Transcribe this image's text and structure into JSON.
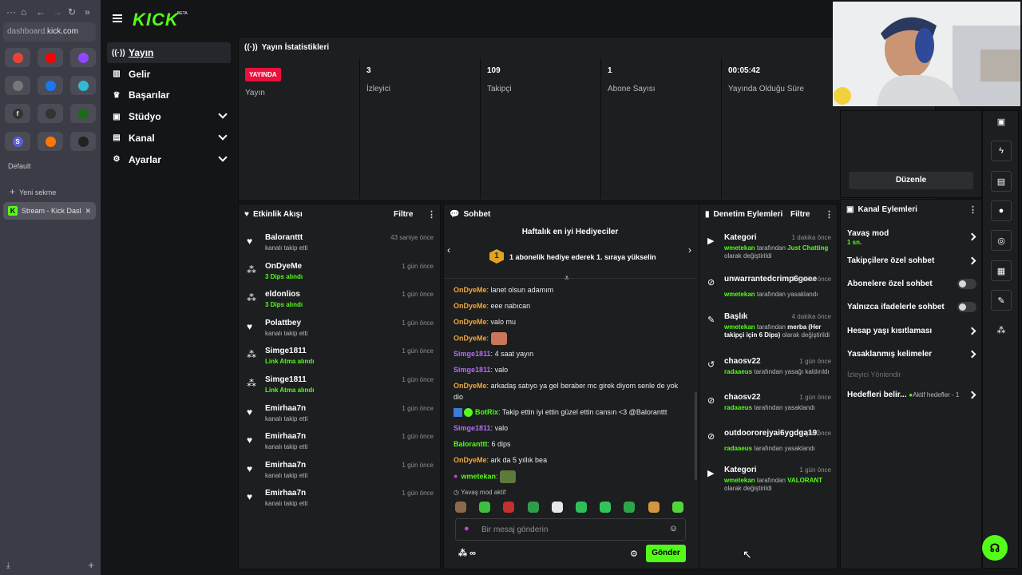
{
  "browser": {
    "url_prefix": "dashboard.",
    "url_domain": "kick.com",
    "favicons": [
      {
        "icon": "google-shortcut",
        "label": "",
        "color": "#ea4335"
      },
      {
        "icon": "youtube-shortcut",
        "label": "",
        "color": "#ff0000"
      },
      {
        "icon": "twitch-shortcut",
        "label": "",
        "color": "#9146ff"
      },
      {
        "icon": "chatgpt-shortcut",
        "label": "",
        "color": "#777"
      },
      {
        "icon": "facebook-shortcut",
        "label": "",
        "color": "#1877f2"
      },
      {
        "icon": "edge-shortcut",
        "label": "",
        "color": "#33b9d4"
      },
      {
        "icon": "f-shortcut",
        "label": "f",
        "color": "#333"
      },
      {
        "icon": "square-shortcut",
        "label": "",
        "color": "#333"
      },
      {
        "icon": "xbox-shortcut",
        "label": "",
        "color": "#1a6b1a"
      },
      {
        "icon": "s-shortcut",
        "label": "S",
        "color": "#5b5fd6"
      },
      {
        "icon": "soundcloud-shortcut",
        "label": "",
        "color": "#ff7700"
      },
      {
        "icon": "diamond-shortcut",
        "label": "",
        "color": "#222"
      }
    ],
    "group_label": "Default",
    "new_tab_label": "Yeni sekme",
    "active_tab_label": "Stream - Kick Dashb..."
  },
  "sidebar": {
    "items": [
      {
        "label": "Yayın",
        "icon": "broadcast-icon",
        "active": true
      },
      {
        "label": "Gelir",
        "icon": "revenue-icon"
      },
      {
        "label": "Başarılar",
        "icon": "trophy-icon"
      },
      {
        "label": "Stüdyo",
        "icon": "studio-icon",
        "expandable": true
      },
      {
        "label": "Kanal",
        "icon": "channel-icon",
        "expandable": true
      },
      {
        "label": "Ayarlar",
        "icon": "gear-icon",
        "expandable": true
      }
    ]
  },
  "stats": {
    "title": "Yayın İstatistikleri",
    "live_badge": "YAYINDA",
    "cells": [
      {
        "label": "Yayın",
        "value": ""
      },
      {
        "label": "İzleyici",
        "value": "3"
      },
      {
        "label": "Takipçi",
        "value": "109"
      },
      {
        "label": "Abone Sayısı",
        "value": "1"
      },
      {
        "label": "Yayında Olduğu Süre",
        "value": "00:05:42"
      }
    ]
  },
  "activity": {
    "title": "Etkinlik Akışı",
    "filter_label": "Filtre",
    "events": [
      {
        "name": "Baloranttt",
        "detail": "kanalı takip etti",
        "time": "43 saniye önce",
        "type": "follow"
      },
      {
        "name": "OnDyeMe",
        "detail": "3 Dips alındı",
        "time": "1 gün önce",
        "type": "dips"
      },
      {
        "name": "eldonlios",
        "detail": "3 Dips alındı",
        "time": "1 gün önce",
        "type": "dips"
      },
      {
        "name": "Polattbey",
        "detail": "kanalı takip etti",
        "time": "1 gün önce",
        "type": "follow"
      },
      {
        "name": "Simge1811",
        "detail": "Link Atma alındı",
        "time": "1 gün önce",
        "type": "dips"
      },
      {
        "name": "Simge1811",
        "detail": "Link Atma alındı",
        "time": "1 gün önce",
        "type": "dips"
      },
      {
        "name": "Emirhaa7n",
        "detail": "kanalı takip etti",
        "time": "1 gün önce",
        "type": "follow"
      },
      {
        "name": "Emirhaa7n",
        "detail": "kanalı takip etti",
        "time": "1 gün önce",
        "type": "follow"
      },
      {
        "name": "Emirhaa7n",
        "detail": "kanalı takip etti",
        "time": "1 gün önce",
        "type": "follow"
      },
      {
        "name": "Emirhaa7n",
        "detail": "kanalı takip etti",
        "time": "1 gün önce",
        "type": "follow"
      }
    ]
  },
  "chat": {
    "title": "Sohbet",
    "gifters_title": "Haftalık en iyi Hediyeciler",
    "gifter_rank": "1",
    "gifter_text": "1 abonelik hediye ederek 1. sıraya yükselin",
    "messages": [
      {
        "user": "OnDyeMe",
        "cls": "u1",
        "text": "lanet olsun adamım"
      },
      {
        "user": "OnDyeMe",
        "cls": "u1",
        "text": "eee nabıcan"
      },
      {
        "user": "OnDyeMe",
        "cls": "u1",
        "text": "valo mu"
      },
      {
        "user": "OnDyeMe",
        "cls": "u1",
        "text": "",
        "emote": true
      },
      {
        "user": "Simge1811",
        "cls": "u2",
        "text": "4 saat yayın"
      },
      {
        "user": "Simge1811",
        "cls": "u2",
        "text": "valo"
      },
      {
        "user": "OnDyeMe",
        "cls": "u1",
        "text": "arkadaş satıyo ya gel beraber mc girek diyom senle de yok dio"
      },
      {
        "user": "BotRix",
        "cls": "u3",
        "text": "Takip ettin iyi ettin güzel ettin cansın <3 @Baloranttt",
        "bot": true
      },
      {
        "user": "Simge1811",
        "cls": "u2",
        "text": "valo"
      },
      {
        "user": "Baloranttt",
        "cls": "u3",
        "text": "6 dips"
      },
      {
        "user": "OnDyeMe",
        "cls": "u1",
        "text": "ark da 5 yıllık bea"
      },
      {
        "user": "wmetekan",
        "cls": "u3",
        "text": "",
        "emote": true,
        "mic": true
      }
    ],
    "slow_mode_label": "Yavaş mod aktif",
    "emote_colors": [
      "#8b6a4c",
      "#3fbf3f",
      "#c43030",
      "#2f9e4a",
      "#e8e8e8",
      "#2fbf5a",
      "#34c45a",
      "#2ca64a",
      "#d49640",
      "#53d43c"
    ],
    "input_placeholder": "Bir mesaj gönderin",
    "send_label": "Gönder",
    "footer_points": "∞"
  },
  "mod_actions": {
    "title": "Denetim Eylemleri",
    "filter_label": "Filtre",
    "items": [
      {
        "icon": "category-icon",
        "name": "Kategori",
        "time": "1 dakika önce",
        "parts": [
          {
            "t": "wmetekan",
            "c": "g"
          },
          {
            "t": " tarafından ",
            "c": ""
          },
          {
            "t": "Just Chatting",
            "c": "g"
          },
          {
            "t": " olarak değiştirildi",
            "c": ""
          }
        ]
      },
      {
        "icon": "ban-icon",
        "name": "unwarrantedcrimp6goee",
        "time": "1 dakika önce",
        "parts": [
          {
            "t": "wmetekan",
            "c": "g"
          },
          {
            "t": " tarafından yasaklandı",
            "c": ""
          }
        ]
      },
      {
        "icon": "title-icon",
        "name": "Başlık",
        "time": "4 dakika önce",
        "parts": [
          {
            "t": "wmetekan",
            "c": "g"
          },
          {
            "t": " tarafından ",
            "c": ""
          },
          {
            "t": "merba (Her takipçi için 6 Dips)",
            "c": "wt"
          },
          {
            "t": " olarak değiştirildi",
            "c": ""
          }
        ]
      },
      {
        "icon": "unban-icon",
        "name": "chaosv22",
        "time": "1 gün önce",
        "parts": [
          {
            "t": "radaaeus",
            "c": "g"
          },
          {
            "t": " tarafından yasağı kaldırıldı",
            "c": ""
          }
        ]
      },
      {
        "icon": "ban-icon",
        "name": "chaosv22",
        "time": "1 gün önce",
        "parts": [
          {
            "t": "radaaeus",
            "c": "g"
          },
          {
            "t": " tarafından yasaklandı",
            "c": ""
          }
        ]
      },
      {
        "icon": "ban-icon",
        "name": "outdoororejyai6ygdga191q3",
        "time": "1 gün önce",
        "parts": [
          {
            "t": "radaaeus",
            "c": "g"
          },
          {
            "t": " tarafından yasaklandı",
            "c": ""
          }
        ]
      },
      {
        "icon": "category-icon",
        "name": "Kategori",
        "time": "1 gün önce",
        "parts": [
          {
            "t": "wmetekan",
            "c": "g"
          },
          {
            "t": " tarafından ",
            "c": ""
          },
          {
            "t": "VALORANT",
            "c": "g"
          },
          {
            "t": " olarak değiştirildi",
            "c": ""
          }
        ]
      }
    ]
  },
  "edit_button": "Düzenle",
  "channel_actions": {
    "title": "Kanal Eylemleri",
    "slow_mode": "Yavaş mod",
    "slow_mode_value": "1 sn.",
    "followers_only": "Takipçilere özel sohbet",
    "subscribers_only": "Abonelere özel sohbet",
    "emotes_only": "Yalnızca ifadelerle sohbet",
    "account_age": "Hesap yaşı kısıtlaması",
    "banned_words": "Yasaklanmış kelimeler",
    "redirect_viewer": "İzleyici Yönlendir",
    "goals": "Hedefleri belir...",
    "goals_active": "Aktif hedefler - 1"
  },
  "colors": {
    "accent": "#53fc18",
    "live": "#e9113c"
  }
}
